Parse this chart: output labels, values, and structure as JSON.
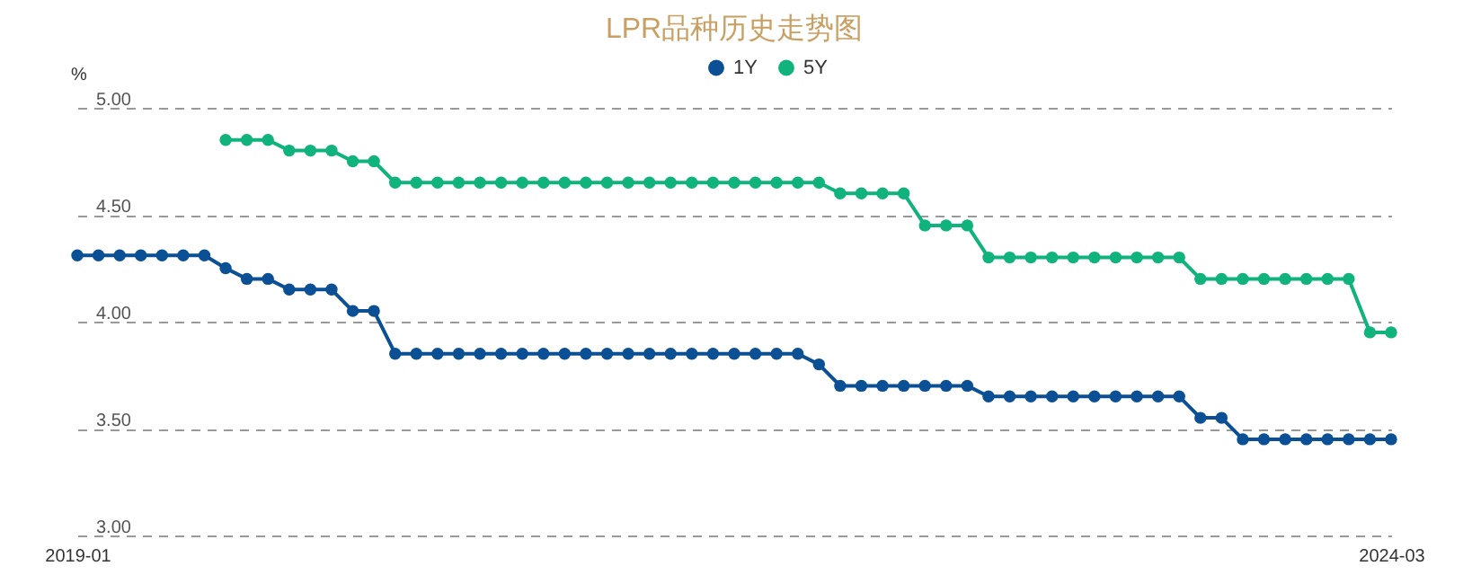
{
  "chart_data": {
    "type": "line",
    "title": "LPR品种历史走势图",
    "ylabel": "%",
    "categories": [
      "2019-01",
      null,
      null,
      null,
      null,
      null,
      null,
      null,
      null,
      null,
      null,
      null,
      null,
      null,
      null,
      null,
      null,
      null,
      null,
      null,
      null,
      null,
      null,
      null,
      null,
      null,
      null,
      null,
      null,
      null,
      null,
      null,
      null,
      null,
      null,
      null,
      null,
      null,
      null,
      null,
      null,
      null,
      null,
      null,
      null,
      null,
      null,
      null,
      null,
      null,
      null,
      null,
      null,
      null,
      null,
      null,
      null,
      null,
      null,
      null,
      null,
      null,
      "2024-03"
    ],
    "series": [
      {
        "name": "1Y",
        "color": "#0b4f95",
        "values": [
          4.31,
          4.31,
          4.31,
          4.31,
          4.31,
          4.31,
          4.31,
          4.25,
          4.2,
          4.2,
          4.15,
          4.15,
          4.15,
          4.05,
          4.05,
          3.85,
          3.85,
          3.85,
          3.85,
          3.85,
          3.85,
          3.85,
          3.85,
          3.85,
          3.85,
          3.85,
          3.85,
          3.85,
          3.85,
          3.85,
          3.85,
          3.85,
          3.85,
          3.85,
          3.85,
          3.8,
          3.7,
          3.7,
          3.7,
          3.7,
          3.7,
          3.7,
          3.7,
          3.65,
          3.65,
          3.65,
          3.65,
          3.65,
          3.65,
          3.65,
          3.65,
          3.65,
          3.65,
          3.55,
          3.55,
          3.45,
          3.45,
          3.45,
          3.45,
          3.45,
          3.45,
          3.45,
          3.45
        ]
      },
      {
        "name": "5Y",
        "color": "#0fb37b",
        "values": [
          null,
          null,
          null,
          null,
          null,
          null,
          null,
          4.85,
          4.85,
          4.85,
          4.8,
          4.8,
          4.8,
          4.75,
          4.75,
          4.65,
          4.65,
          4.65,
          4.65,
          4.65,
          4.65,
          4.65,
          4.65,
          4.65,
          4.65,
          4.65,
          4.65,
          4.65,
          4.65,
          4.65,
          4.65,
          4.65,
          4.65,
          4.65,
          4.65,
          4.65,
          4.6,
          4.6,
          4.6,
          4.6,
          4.45,
          4.45,
          4.45,
          4.3,
          4.3,
          4.3,
          4.3,
          4.3,
          4.3,
          4.3,
          4.3,
          4.3,
          4.3,
          4.2,
          4.2,
          4.2,
          4.2,
          4.2,
          4.2,
          4.2,
          4.2,
          3.95,
          3.95
        ]
      }
    ],
    "ylim": [
      3,
      5
    ],
    "yticks": [
      {
        "value": 3,
        "label": "3.00"
      },
      {
        "value": 3.5,
        "label": "3.50"
      },
      {
        "value": 4,
        "label": "4.00"
      },
      {
        "value": 4.5,
        "label": "4.50"
      },
      {
        "value": 5,
        "label": "5.00"
      }
    ],
    "grid": "y",
    "legend": "top",
    "marker": "circle",
    "line_style": "solid"
  }
}
